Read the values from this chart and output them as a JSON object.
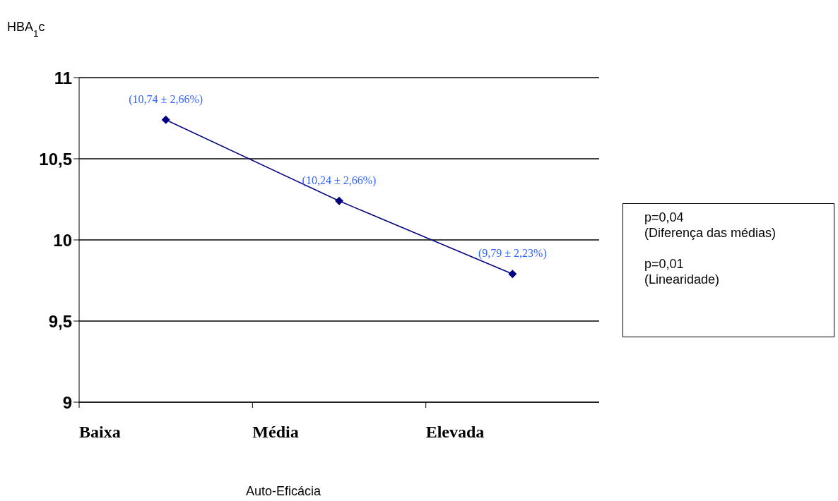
{
  "chart_data": {
    "type": "line",
    "ylabel": "HBA$_{1}$c",
    "xlabel": "Auto-Eficácia",
    "categories": [
      "Baixa",
      "Média",
      "Elevada"
    ],
    "series": [
      {
        "color": "#000080",
        "values": [
          10.74,
          10.24,
          9.79
        ],
        "value_labels": [
          "(10,74 ± 2,66%)",
          "(10,24 ± 2,66%)",
          "(9,79 ± 2,23%)"
        ]
      }
    ],
    "ylim": [
      9,
      11
    ],
    "yticks": [
      9,
      {
        "value": 9.5,
        "label": "9,5"
      },
      10,
      {
        "value": 10.5,
        "label": "10,5"
      },
      11
    ],
    "grid": "y",
    "marker": "diamond",
    "line_style": "solid",
    "annotations": [
      "p=0,04\n(Diferença das médias)\n\np=0,01\n(Linearidade)"
    ]
  }
}
